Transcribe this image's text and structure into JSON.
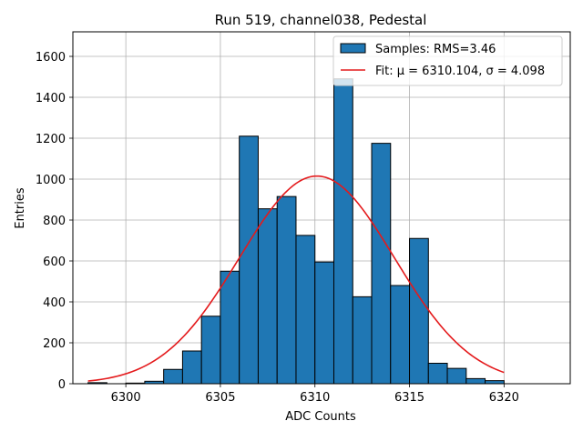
{
  "chart_data": {
    "type": "bar",
    "title": "Run 519, channel038, Pedestal",
    "xlabel": "ADC Counts",
    "ylabel": "Entries",
    "xlim": [
      6297.2,
      6323.5
    ],
    "ylim": [
      0,
      1720
    ],
    "xticks": [
      6300,
      6305,
      6310,
      6315,
      6320
    ],
    "yticks": [
      0,
      200,
      400,
      600,
      800,
      1000,
      1200,
      1400,
      1600
    ],
    "grid": true,
    "legend_position": "top-right",
    "bin_width": 1,
    "histogram": {
      "name": "Samples: RMS=3.46",
      "color": "#1f77b4",
      "bins": [
        {
          "left": 6298,
          "count": 5
        },
        {
          "left": 6299,
          "count": 0
        },
        {
          "left": 6300,
          "count": 3
        },
        {
          "left": 6301,
          "count": 12
        },
        {
          "left": 6302,
          "count": 70
        },
        {
          "left": 6303,
          "count": 160
        },
        {
          "left": 6304,
          "count": 330
        },
        {
          "left": 6305,
          "count": 550
        },
        {
          "left": 6306,
          "count": 1210
        },
        {
          "left": 6307,
          "count": 855
        },
        {
          "left": 6308,
          "count": 915
        },
        {
          "left": 6309,
          "count": 725
        },
        {
          "left": 6310,
          "count": 595
        },
        {
          "left": 6311,
          "count": 1490
        },
        {
          "left": 6312,
          "count": 425
        },
        {
          "left": 6313,
          "count": 1175
        },
        {
          "left": 6314,
          "count": 480
        },
        {
          "left": 6315,
          "count": 710
        },
        {
          "left": 6316,
          "count": 100
        },
        {
          "left": 6317,
          "count": 75
        },
        {
          "left": 6318,
          "count": 25
        },
        {
          "left": 6319,
          "count": 15
        }
      ]
    },
    "fit": {
      "name": "Fit: μ = 6310.104, σ = 4.098",
      "color": "#e41a1c",
      "mu": 6310.104,
      "sigma": 4.098,
      "amplitude": 1015,
      "x_range": [
        6298,
        6320
      ]
    }
  }
}
